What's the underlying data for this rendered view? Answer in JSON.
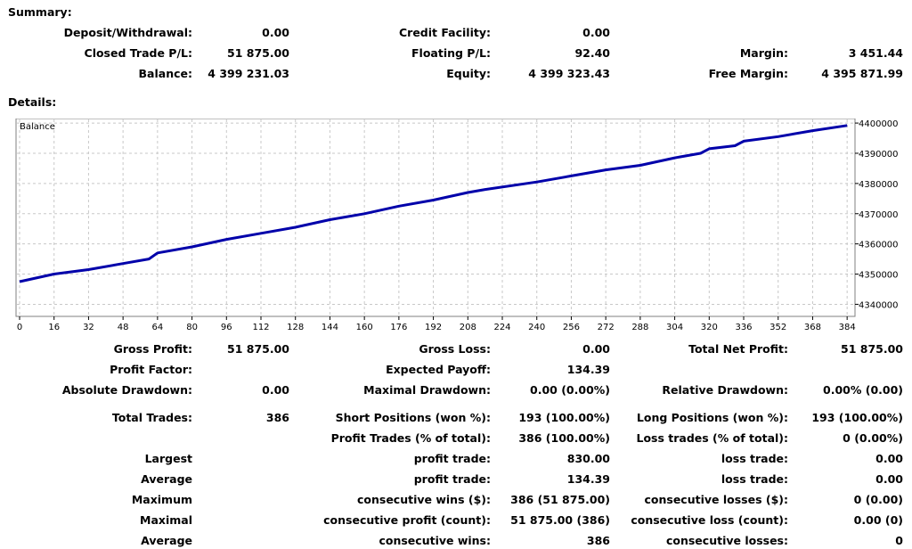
{
  "summary_title": "Summary:",
  "details_title": "Details:",
  "summary": {
    "deposit_label": "Deposit/Withdrawal:",
    "deposit_value": "0.00",
    "credit_label": "Credit Facility:",
    "credit_value": "0.00",
    "closed_pl_label": "Closed Trade P/L:",
    "closed_pl_value": "51 875.00",
    "floating_pl_label": "Floating P/L:",
    "floating_pl_value": "92.40",
    "margin_label": "Margin:",
    "margin_value": "3 451.44",
    "balance_label": "Balance:",
    "balance_value": "4 399 231.03",
    "equity_label": "Equity:",
    "equity_value": "4 399 323.43",
    "free_margin_label": "Free Margin:",
    "free_margin_value": "4 395 871.99"
  },
  "chart_data": {
    "type": "line",
    "legend": "Balance",
    "x_ticks": [
      0,
      16,
      32,
      48,
      64,
      80,
      96,
      112,
      128,
      144,
      160,
      176,
      192,
      208,
      224,
      240,
      256,
      272,
      288,
      304,
      320,
      336,
      352,
      368,
      384
    ],
    "y_ticks": [
      4340000,
      4350000,
      4360000,
      4370000,
      4380000,
      4390000,
      4400000
    ],
    "xlim": [
      0,
      386
    ],
    "ylim": [
      4336000,
      4401500
    ],
    "grid": true,
    "series": [
      {
        "name": "Balance",
        "color": "#0000aa",
        "x": [
          0,
          16,
          32,
          48,
          60,
          64,
          80,
          96,
          112,
          128,
          144,
          160,
          176,
          192,
          208,
          216,
          240,
          256,
          272,
          288,
          304,
          316,
          320,
          332,
          336,
          352,
          368,
          384
        ],
        "y": [
          4347500,
          4350000,
          4351500,
          4353500,
          4355000,
          4357000,
          4359000,
          4361500,
          4363500,
          4365500,
          4368000,
          4370000,
          4372500,
          4374500,
          4377000,
          4378000,
          4380500,
          4382500,
          4384500,
          4386000,
          4388500,
          4390000,
          4391500,
          4392500,
          4394000,
          4395500,
          4397500,
          4399200
        ]
      }
    ]
  },
  "details": {
    "gross_profit_label": "Gross Profit:",
    "gross_profit_value": "51 875.00",
    "gross_loss_label": "Gross Loss:",
    "gross_loss_value": "0.00",
    "total_net_label": "Total Net Profit:",
    "total_net_value": "51 875.00",
    "profit_factor_label": "Profit Factor:",
    "profit_factor_value": "",
    "expected_payoff_label": "Expected Payoff:",
    "expected_payoff_value": "134.39",
    "abs_drawdown_label": "Absolute Drawdown:",
    "abs_drawdown_value": "0.00",
    "max_drawdown_label": "Maximal Drawdown:",
    "max_drawdown_value": "0.00 (0.00%)",
    "rel_drawdown_label": "Relative Drawdown:",
    "rel_drawdown_value": "0.00% (0.00)",
    "total_trades_label": "Total Trades:",
    "total_trades_value": "386",
    "short_pos_label": "Short Positions (won %):",
    "short_pos_value": "193 (100.00%)",
    "long_pos_label": "Long Positions (won %):",
    "long_pos_value": "193 (100.00%)",
    "profit_trades_label": "Profit Trades (% of total):",
    "profit_trades_value": "386 (100.00%)",
    "loss_trades_label": "Loss trades (% of total):",
    "loss_trades_value": "0 (0.00%)",
    "largest_label": "Largest",
    "largest_profit_label": "profit trade:",
    "largest_profit_value": "830.00",
    "largest_loss_label": "loss trade:",
    "largest_loss_value": "0.00",
    "average_label": "Average",
    "average_profit_label": "profit trade:",
    "average_profit_value": "134.39",
    "average_loss_label": "loss trade:",
    "average_loss_value": "0.00",
    "maximum_label": "Maximum",
    "max_cons_wins_label": "consecutive wins ($):",
    "max_cons_wins_value": "386 (51 875.00)",
    "max_cons_losses_label": "consecutive losses ($):",
    "max_cons_losses_value": "0 (0.00)",
    "maximal_label": "Maximal",
    "maximal_cons_profit_label": "consecutive profit (count):",
    "maximal_cons_profit_value": "51 875.00 (386)",
    "maximal_cons_loss_label": "consecutive loss (count):",
    "maximal_cons_loss_value": "0.00 (0)",
    "average2_label": "Average",
    "avg_cons_wins_label": "consecutive wins:",
    "avg_cons_wins_value": "386",
    "avg_cons_losses_label": "consecutive losses:",
    "avg_cons_losses_value": "0"
  }
}
